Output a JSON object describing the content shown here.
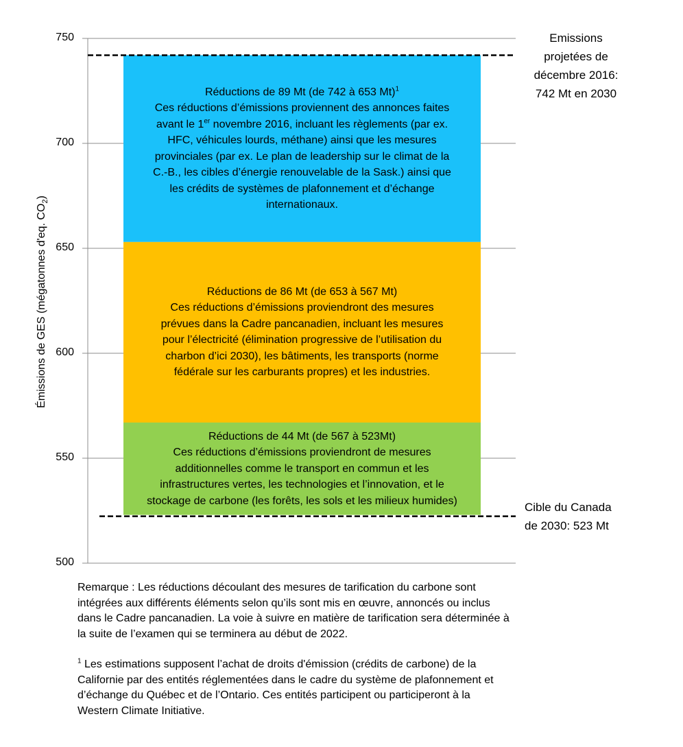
{
  "chart_data": {
    "type": "bar",
    "stacked": true,
    "ylabel": "Émissions de GES (mégatonnes d'eq. CO2)",
    "ylabel_parts": {
      "main": "Émissions de GES (mégatonnes d'eq. CO",
      "sub": "2",
      "end": ")"
    },
    "ylim": [
      500,
      750
    ],
    "yticks": [
      500,
      550,
      600,
      650,
      700,
      750
    ],
    "ytick_labels": [
      "500",
      "550",
      "600",
      "650",
      "700",
      "750"
    ],
    "grid": true,
    "segments": [
      {
        "from": 742,
        "to": 653,
        "color": "#1AC1FA",
        "lines": [
          [
            {
              "t": "Réductions de 89 Mt (de 742 à 653 Mt)"
            },
            {
              "t": "1",
              "sup": true
            }
          ],
          [
            {
              "t": "Ces réductions d’émissions proviennent des annonces faites"
            }
          ],
          [
            {
              "t": "avant le 1"
            },
            {
              "t": "er",
              "sup": true
            },
            {
              "t": " novembre 2016, incluant les règlements (par ex."
            }
          ],
          [
            {
              "t": "HFC, véhicules lourds, méthane) ainsi que les mesures"
            }
          ],
          [
            {
              "t": "provinciales (par ex. Le plan de leadership sur le climat de la"
            }
          ],
          [
            {
              "t": "C.-B., les cibles d’énergie renouvelable de la Sask.) ainsi que"
            }
          ],
          [
            {
              "t": "les crédits de systèmes de plafonnement et d’échange"
            }
          ],
          [
            {
              "t": "internationaux."
            }
          ]
        ]
      },
      {
        "from": 653,
        "to": 567,
        "color": "#FFC000",
        "lines": [
          [
            {
              "t": "Réductions de 86 Mt (de 653 à 567 Mt)"
            }
          ],
          [
            {
              "t": "Ces réductions d’émissions proviendront des mesures"
            }
          ],
          [
            {
              "t": "prévues dans la Cadre pancanadien, incluant les mesures"
            }
          ],
          [
            {
              "t": "pour l’électricité (élimination progressive de l’utilisation du"
            }
          ],
          [
            {
              "t": "charbon d’ici 2030), les bâtiments, les transports (norme"
            }
          ],
          [
            {
              "t": "fédérale sur les carburants propres) et les industries."
            }
          ]
        ]
      },
      {
        "from": 567,
        "to": 523,
        "color": "#92D050",
        "lines": [
          [
            {
              "t": "Réductions de 44 Mt (de 567 à 523Mt)"
            }
          ],
          [
            {
              "t": "Ces réductions d’émissions proviendront de mesures"
            }
          ],
          [
            {
              "t": "additionnelles comme le transport en commun et les"
            }
          ],
          [
            {
              "t": "infrastructures vertes, les technologies et l’innovation, et le"
            }
          ],
          [
            {
              "t": "stockage de carbone (les forêts, les sols et les milieux humides)"
            }
          ]
        ]
      }
    ],
    "reference_lines": [
      {
        "value": 742,
        "style": "dashed",
        "color": "#000000",
        "label_lines": [
          "Emissions",
          "projetées de",
          "décembre 2016:",
          "742 Mt en 2030"
        ]
      },
      {
        "value": 523,
        "style": "dashed",
        "color": "#000000",
        "label_lines": [
          "Cible du Canada",
          "de 2030: 523 Mt"
        ]
      }
    ]
  },
  "notes": {
    "remark_lines": [
      "Remarque : Les réductions découlant des mesures de tarification du carbone sont",
      "intégrées aux différents éléments selon qu’ils sont mis en œuvre, annoncés ou inclus",
      "dans le Cadre pancanadien. La voie à suivre en matière de tarification sera déterminée à",
      "la suite de l’examen qui se terminera au début de 2022."
    ],
    "footnote_marker": "1",
    "footnote_lines": [
      " Les estimations supposent l’achat de droits d'émission (crédits de carbone) de la",
      "Californie par des entités réglementées dans le cadre du système de plafonnement et",
      "d’échange du Québec et de l’Ontario. Ces entités participent ou participeront à la",
      "Western Climate Initiative."
    ]
  }
}
